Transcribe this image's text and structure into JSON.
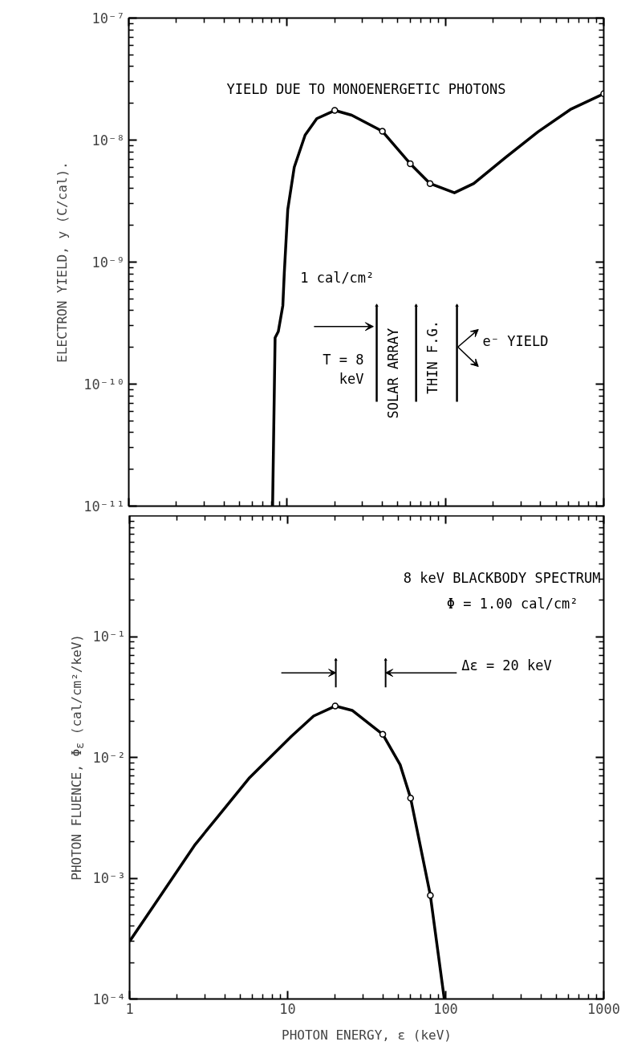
{
  "chart_data": [
    {
      "type": "line",
      "ylabel": "ELECTRON YIELD, y (C/cal).",
      "log": "xy",
      "tick_labels": "y",
      "xlim": [
        1,
        1000
      ],
      "xticks": [
        {
          "value": 1,
          "label": null
        },
        {
          "value": 10,
          "label": null
        },
        {
          "value": 100,
          "label": null
        },
        {
          "value": 1000,
          "label": null
        }
      ],
      "ylim": [
        1e-11,
        1e-07
      ],
      "yticks": [
        {
          "value": 1e-11,
          "label": "10⁻¹¹"
        },
        {
          "value": 1e-10,
          "label": "10⁻¹⁰"
        },
        {
          "value": 1e-09,
          "label": "10⁻⁹"
        },
        {
          "value": 1e-08,
          "label": "10⁻⁸"
        },
        {
          "value": 1e-07,
          "label": "10⁻⁷"
        }
      ],
      "series": [
        {
          "color": "#000000",
          "x": [
            8.1,
            8.4,
            8.8,
            9.4,
            9.6,
            10.1,
            11.1,
            13,
            15.4,
            20,
            25.6,
            40,
            60,
            80,
            114,
            151,
            240,
            385,
            615,
            1000
          ],
          "values": [
            1e-11,
            2.4e-10,
            2.7e-10,
            4.4e-10,
            8.1e-10,
            2.7e-09,
            6e-09,
            1.1e-08,
            1.5e-08,
            1.75e-08,
            1.6e-08,
            1.18e-08,
            6.4e-09,
            4.4e-09,
            3.7e-09,
            4.4e-09,
            7.2e-09,
            1.17e-08,
            1.78e-08,
            2.4e-08
          ]
        },
        {
          "type": "scatter",
          "marker": "circle",
          "color": "#000000",
          "x": [
            20,
            40,
            60,
            80,
            1000
          ],
          "values": [
            1.75e-08,
            1.18e-08,
            6.4e-09,
            4.4e-09,
            2.4e-08
          ]
        }
      ],
      "annotations": [
        "YIELD DUE TO MONOENERGETIC PHOTONS",
        "1 cal/cm²",
        "T = 8\nkeV",
        "SOLAR ARRAY",
        "THIN F.G.",
        "e⁻ YIELD"
      ]
    },
    {
      "type": "line",
      "xlabel": "PHOTON ENERGY, ε (keV)",
      "ylabel": "PHOTON FLUENCE, Φ$_{ε}$ (cal/cm²/keV)",
      "log": "xy",
      "xlim": [
        1,
        1000
      ],
      "xticks": [
        1,
        10,
        100,
        1000
      ],
      "ylim": [
        0.0001,
        1
      ],
      "yticks": [
        {
          "value": 0.0001,
          "label": "10⁻⁴"
        },
        {
          "value": 0.001,
          "label": "10⁻³"
        },
        {
          "value": 0.01,
          "label": "10⁻²"
        },
        {
          "value": 0.1,
          "label": "10⁻¹"
        }
      ],
      "series": [
        {
          "color": "#000000",
          "x": [
            1,
            1.42,
            2.6,
            5.75,
            10.6,
            14.6,
            20,
            25.6,
            40,
            51.5,
            60,
            80,
            98
          ],
          "values": [
            0.0003,
            0.00059,
            0.0019,
            0.0068,
            0.015,
            0.022,
            0.0266,
            0.0245,
            0.0155,
            0.0087,
            0.0046,
            0.00072,
            0.0001
          ]
        },
        {
          "type": "scatter",
          "marker": "circle",
          "color": "#000000",
          "x": [
            20,
            40,
            60,
            80
          ],
          "values": [
            0.0266,
            0.0155,
            0.0046,
            0.00072
          ]
        }
      ],
      "annotations": [
        "8 keV BLACKBODY SPECTRUM",
        "Φ = 1.00 cal/cm²",
        "Δε = 20 keV"
      ]
    }
  ]
}
